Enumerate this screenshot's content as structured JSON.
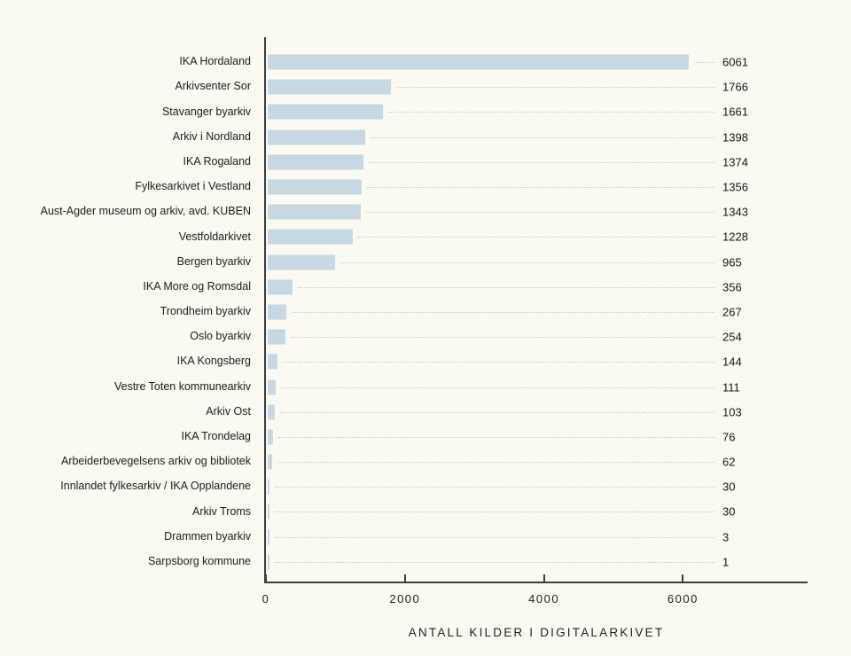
{
  "chart_data": {
    "type": "bar",
    "orientation": "horizontal",
    "title": "",
    "xlabel": "ANTALL KILDER I DIGITALARKIVET",
    "ylabel": "",
    "categories": [
      "IKA Hordaland",
      "Arkivsenter Sor",
      "Stavanger byarkiv",
      "Arkiv i Nordland",
      "IKA Rogaland",
      "Fylkesarkivet i Vestland",
      "Aust-Agder museum og arkiv, avd. KUBEN",
      "Vestfoldarkivet",
      "Bergen byarkiv",
      "IKA More og Romsdal",
      "Trondheim byarkiv",
      "Oslo byarkiv",
      "IKA Kongsberg",
      "Vestre Toten kommunearkiv",
      "Arkiv Ost",
      "IKA Trondelag",
      "Arbeiderbevegelsens arkiv og bibliotek",
      "Innlandet fylkesarkiv / IKA Opplandene",
      "Arkiv Troms",
      "Drammen byarkiv",
      "Sarpsborg kommune"
    ],
    "values": [
      6061,
      1766,
      1661,
      1398,
      1374,
      1356,
      1343,
      1228,
      965,
      356,
      267,
      254,
      144,
      111,
      103,
      76,
      62,
      30,
      30,
      3,
      1
    ],
    "value_labels": [
      "6061",
      "1766",
      "1661",
      "1398",
      "1374",
      "1356",
      "1343",
      "1228",
      "965",
      "356",
      "267",
      "254",
      "144",
      "111",
      "103",
      "76",
      "62",
      "30",
      "30",
      "3",
      "1"
    ],
    "x_ticks": [
      0,
      2000,
      4000,
      6000
    ],
    "x_tick_labels": [
      "0",
      "2000",
      "4000",
      "6000"
    ],
    "xlim": [
      0,
      7780
    ],
    "grid": false,
    "legend": false,
    "bar_color": "#c7d8e2",
    "axis_color": "#3c3c3c",
    "leader_line_color": "#c9c9c0",
    "background_color": "#fafaf2"
  }
}
